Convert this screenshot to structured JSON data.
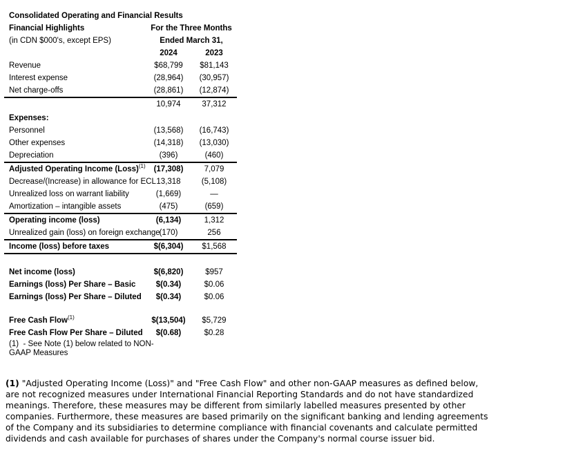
{
  "page": {
    "background_color": "#ffffff",
    "text_color": "#000000",
    "rule_color": "#000000"
  },
  "document": {
    "title": "Consolidated Operating and Financial Results",
    "table": {
      "header": {
        "left_line1": "Financial Highlights",
        "left_line2": "(in CDN $000's, except EPS)",
        "right_line1": "For the Three Months",
        "right_line2": "Ended March 31,",
        "col_2024_label": "2024",
        "col_2023_label": "2023"
      },
      "rows": [
        {
          "label": "Revenue",
          "v2024": "$68,799",
          "v2023": "$81,143"
        },
        {
          "label": "Interest expense",
          "v2024": "(28,964)",
          "v2023": "(30,957)"
        },
        {
          "label": "Net charge-offs",
          "v2024": "(28,861)",
          "v2023": "(12,874)",
          "line": true
        },
        {
          "label": "",
          "v2024": "10,974",
          "v2023": "37,312"
        },
        {
          "label": "Expenses:",
          "bold": true,
          "v2024": "",
          "v2023": "",
          "space_before": 2
        },
        {
          "label": "Personnel",
          "v2024": "(13,568)",
          "v2023": "(16,743)"
        },
        {
          "label": "Other expenses",
          "v2024": "(14,318)",
          "v2023": "(13,030)"
        },
        {
          "label": "Depreciation",
          "v2024": "(396)",
          "v2023": "(460)",
          "line": true
        },
        {
          "label": "Adjusted Operating Income (Loss)",
          "sup": "(1)",
          "bold": true,
          "v2024": "(17,308)",
          "v2023": "7,079"
        },
        {
          "label": "Decrease/(Increase) in allowance for ECL",
          "v2024": "13,318",
          "v2023": "(5,108)"
        },
        {
          "label": "Unrealized loss on warrant liability",
          "v2024": "(1,669)",
          "v2023": "—"
        },
        {
          "label": "Amortization – intangible assets",
          "v2024": "(475)",
          "v2023": "(659)",
          "line": true
        },
        {
          "label": "Operating income (loss)",
          "bold": true,
          "v2024": "(6,134)",
          "v2023": "1,312"
        },
        {
          "label": "Unrealized gain (loss) on foreign exchange",
          "v2024": "(170)",
          "v2023": "256",
          "line": true
        },
        {
          "label": "Income (loss) before taxes",
          "bold": true,
          "v2024": "$(6,304)",
          "v2023": "$1,568",
          "line": true
        },
        {
          "label": "Net income (loss)",
          "bold": true,
          "v2024": "$(6,820)",
          "v2023": "$957",
          "space_before": 17
        },
        {
          "label": "Earnings (loss) Per Share – Basic",
          "bold": true,
          "v2024": "$(0.34)",
          "v2023": "$0.06"
        },
        {
          "label": "Earnings (loss) Per Share – Diluted",
          "bold": true,
          "v2024": "$(0.34)",
          "v2023": "$0.06"
        },
        {
          "label": "Free Cash Flow",
          "sup": "(1)",
          "bold": true,
          "v2024": "$(13,504)",
          "v2023": "$5,729",
          "space_before": 16
        },
        {
          "label": "Free Cash Flow Per Share – Diluted",
          "bold": true,
          "v2024": "$(0.68)",
          "v2023": "$0.28"
        }
      ],
      "footnote": "(1)  - See Note (1) below related to NON-GAAP Measures"
    },
    "note_paragraph": {
      "marker": "(1)",
      "text": "\"Adjusted Operating Income (Loss)\" and \"Free Cash Flow\" and other non-GAAP measures as defined below, are not recognized measures under International Financial Reporting Standards and do not have standardized meanings. Therefore, these measures may be different from similarly labelled measures presented by other companies. Furthermore, these measures are based primarily on the significant banking and lending agreements of the Company and its subsidiaries to determine compliance with financial covenants and calculate permitted dividends and cash available for purchases of shares under the Company's normal course issuer bid."
    }
  }
}
